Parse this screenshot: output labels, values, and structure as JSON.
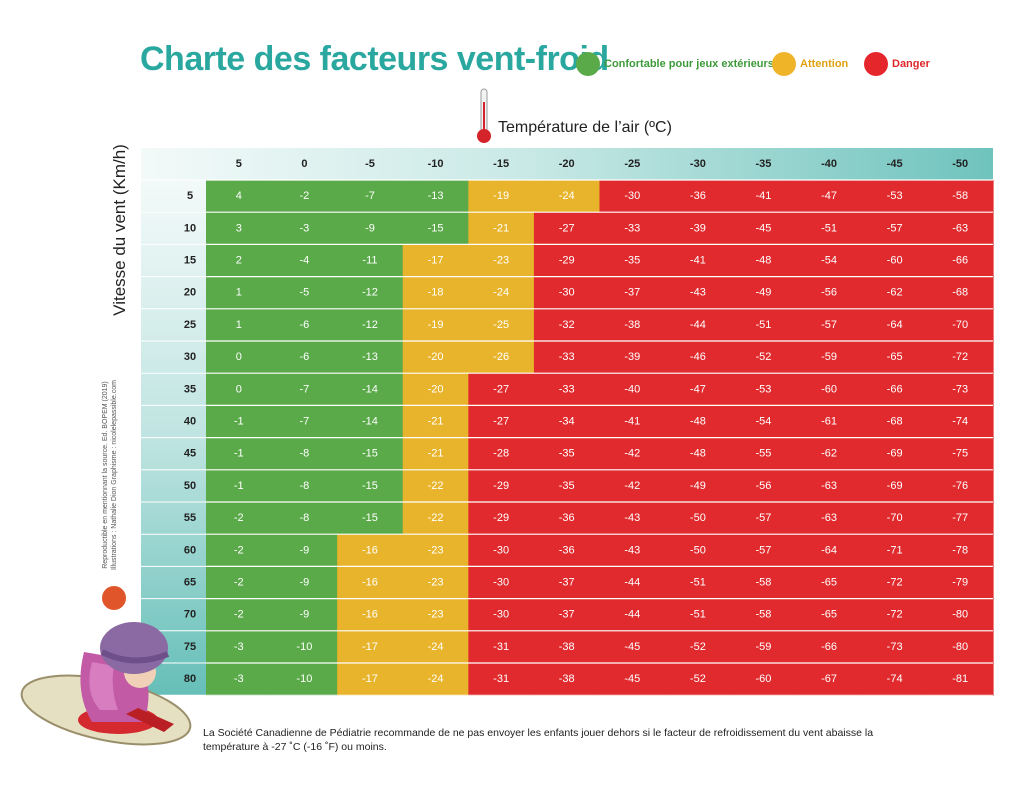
{
  "title": "Charte des facteurs vent-froid",
  "legend": [
    {
      "label": "Confortable pour jeux extérieurs",
      "color": "#5aaa4a",
      "key": "G"
    },
    {
      "label": "Attention",
      "color": "#f0b429",
      "key": "Y"
    },
    {
      "label": "Danger",
      "color": "#e5262b",
      "key": "R"
    }
  ],
  "colors": {
    "green": "#5aaa4a",
    "yellow": "#e8b42c",
    "red": "#e12a2e",
    "header_light": "#e6f4f3",
    "header_dark": "#6fc3bd",
    "title_teal": "#2aa8a0"
  },
  "temperature_label": "Température de l’air (ºC)",
  "wind_label": "Vitesse du vent (Km/h)",
  "credits": [
    "Reproductible en mentionnant la source. Ed. BOPEM (2019)",
    "Illustrations : Nathalie Dion     Graphisme : nicolelepassible.com"
  ],
  "note": "La Société Canadienne de Pédiatrie recommande de ne pas envoyer les enfants jouer dehors si le facteur de refroidissement du vent abaisse la température à -27 ˚C (-16 ˚F) ou moins.",
  "chart_data": {
    "type": "table",
    "title": "Charte des facteurs vent-froid",
    "xlabel": "Température de l’air (ºC)",
    "ylabel": "Vitesse du vent (Km/h)",
    "columns": [
      "5",
      "0",
      "-5",
      "-10",
      "-15",
      "-20",
      "-25",
      "-30",
      "-35",
      "-40",
      "-45",
      "-50"
    ],
    "rows": [
      "5",
      "10",
      "15",
      "20",
      "25",
      "30",
      "35",
      "40",
      "45",
      "50",
      "55",
      "60",
      "65",
      "70",
      "75",
      "80"
    ],
    "values": [
      [
        4,
        -2,
        -7,
        -13,
        -19,
        -24,
        -30,
        -36,
        -41,
        -47,
        -53,
        -58
      ],
      [
        3,
        -3,
        -9,
        -15,
        -21,
        -27,
        -33,
        -39,
        -45,
        -51,
        -57,
        -63
      ],
      [
        2,
        -4,
        -11,
        -17,
        -23,
        -29,
        -35,
        -41,
        -48,
        -54,
        -60,
        -66
      ],
      [
        1,
        -5,
        -12,
        -18,
        -24,
        -30,
        -37,
        -43,
        -49,
        -56,
        -62,
        -68
      ],
      [
        1,
        -6,
        -12,
        -19,
        -25,
        -32,
        -38,
        -44,
        -51,
        -57,
        -64,
        -70
      ],
      [
        0,
        -6,
        -13,
        -20,
        -26,
        -33,
        -39,
        -46,
        -52,
        -59,
        -65,
        -72
      ],
      [
        0,
        -7,
        -14,
        -20,
        -27,
        -33,
        -40,
        -47,
        -53,
        -60,
        -66,
        -73
      ],
      [
        -1,
        -7,
        -14,
        -21,
        -27,
        -34,
        -41,
        -48,
        -54,
        -61,
        -68,
        -74
      ],
      [
        -1,
        -8,
        -15,
        -21,
        -28,
        -35,
        -42,
        -48,
        -55,
        -62,
        -69,
        -75
      ],
      [
        -1,
        -8,
        -15,
        -22,
        -29,
        -35,
        -42,
        -49,
        -56,
        -63,
        -69,
        -76
      ],
      [
        -2,
        -8,
        -15,
        -22,
        -29,
        -36,
        -43,
        -50,
        -57,
        -63,
        -70,
        -77
      ],
      [
        -2,
        -9,
        -16,
        -23,
        -30,
        -36,
        -43,
        -50,
        -57,
        -64,
        -71,
        -78
      ],
      [
        -2,
        -9,
        -16,
        -23,
        -30,
        -37,
        -44,
        -51,
        -58,
        -65,
        -72,
        -79
      ],
      [
        -2,
        -9,
        -16,
        -23,
        -30,
        -37,
        -44,
        -51,
        -58,
        -65,
        -72,
        -80
      ],
      [
        -3,
        -10,
        -17,
        -24,
        -31,
        -38,
        -45,
        -52,
        -59,
        -66,
        -73,
        -80
      ],
      [
        -3,
        -10,
        -17,
        -24,
        -31,
        -38,
        -45,
        -52,
        -60,
        -67,
        -74,
        -81
      ]
    ],
    "zones": [
      "GGGGYYRRRRRR",
      "GGGGYRRRRRRR",
      "GGGYYRRRRRRR",
      "GGGYYRRRRRRR",
      "GGGYYRRRRRRR",
      "GGGYYRRRRRRR",
      "GGGYRRRRRRRR",
      "GGGYRRRRRRRR",
      "GGGYRRRRRRRR",
      "GGGYRRRRRRRR",
      "GGGYRRRRRRRR",
      "GGYYRRRRRRRR",
      "GGYYRRRRRRRR",
      "GGYYRRRRRRRR",
      "GGYYRRRRRRRR",
      "GGYYRRRRRRRR"
    ]
  }
}
